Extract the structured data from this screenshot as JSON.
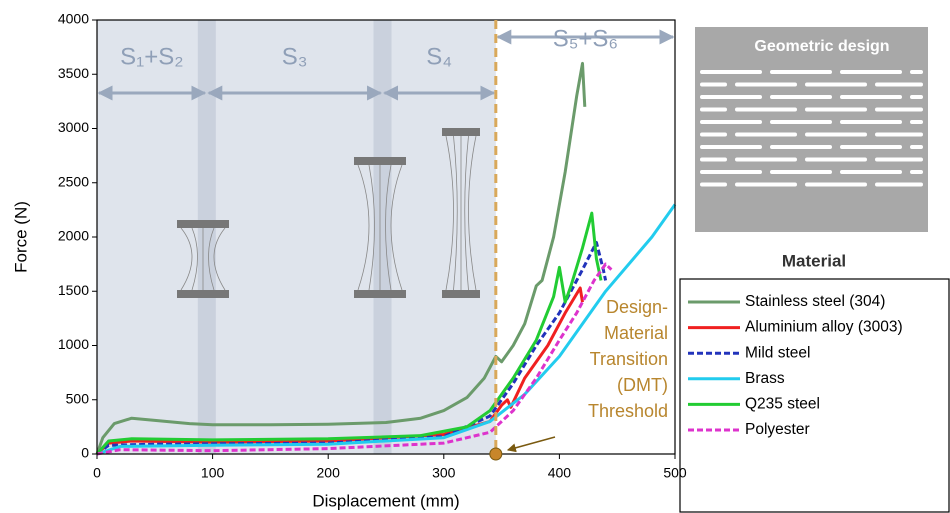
{
  "chart_data": {
    "type": "line",
    "x_label": "Displacement (mm)",
    "y_label": "Force (N)",
    "xlim": [
      0,
      500
    ],
    "xticks": [
      0,
      100,
      200,
      300,
      400,
      500
    ],
    "ylim": [
      0,
      4000
    ],
    "yticks": [
      0,
      500,
      1000,
      1500,
      2000,
      2500,
      3000,
      3500,
      4000
    ],
    "threshold": 345,
    "stages": [
      {
        "label": "S₁+S₂",
        "range": [
          0,
          95
        ]
      },
      {
        "label": "S₃",
        "range": [
          95,
          247
        ]
      },
      {
        "label": "S₄",
        "range": [
          247,
          345
        ]
      },
      {
        "label": "S₅+S₆",
        "range": [
          345,
          500
        ]
      }
    ],
    "annotation_lines": [
      "Design-",
      "Material",
      "Transition",
      "(DMT)",
      "Threshold"
    ],
    "panel_title": "Geometric design",
    "legend_title": "Material",
    "series": [
      {
        "name": "Stainless steel (304)",
        "color": "#6b9b6b",
        "dash": false,
        "x": [
          0,
          5,
          15,
          30,
          50,
          80,
          100,
          150,
          200,
          250,
          280,
          300,
          320,
          335,
          345,
          350,
          360,
          370,
          380,
          385,
          395,
          405,
          415,
          420,
          422
        ],
        "values": [
          0,
          150,
          280,
          330,
          310,
          280,
          270,
          270,
          275,
          290,
          330,
          400,
          520,
          700,
          900,
          850,
          1000,
          1200,
          1550,
          1600,
          2000,
          2600,
          3300,
          3600,
          3200
        ]
      },
      {
        "name": "Aluminium alloy (3003)",
        "color": "#f02020",
        "dash": false,
        "x": [
          0,
          10,
          30,
          100,
          200,
          300,
          340,
          350,
          355,
          358,
          370,
          390,
          405,
          418,
          420
        ],
        "values": [
          0,
          100,
          120,
          110,
          120,
          180,
          300,
          450,
          500,
          430,
          700,
          1000,
          1300,
          1530,
          1400
        ]
      },
      {
        "name": "Mild steel",
        "color": "#2233bb",
        "dash": true,
        "x": [
          0,
          10,
          50,
          200,
          300,
          340,
          360,
          380,
          400,
          420,
          432,
          438,
          440
        ],
        "values": [
          0,
          80,
          90,
          100,
          160,
          350,
          650,
          1000,
          1300,
          1700,
          1950,
          1700,
          1600
        ]
      },
      {
        "name": "Brass",
        "color": "#22ccee",
        "dash": false,
        "x": [
          0,
          20,
          100,
          200,
          300,
          340,
          370,
          400,
          440,
          480,
          500
        ],
        "values": [
          0,
          70,
          80,
          90,
          150,
          300,
          550,
          900,
          1500,
          2000,
          2300
        ]
      },
      {
        "name": "Q235 steel",
        "color": "#22cc33",
        "dash": false,
        "x": [
          0,
          10,
          30,
          100,
          200,
          280,
          320,
          340,
          360,
          380,
          395,
          400,
          405,
          410,
          420,
          428,
          432,
          436
        ],
        "values": [
          0,
          120,
          140,
          130,
          140,
          170,
          250,
          400,
          700,
          1050,
          1450,
          1720,
          1400,
          1550,
          1900,
          2220,
          1800,
          1600
        ]
      },
      {
        "name": "Polyester",
        "color": "#dd33cc",
        "dash": true,
        "x": [
          0,
          20,
          100,
          200,
          300,
          340,
          360,
          380,
          400,
          415,
          430,
          440,
          445
        ],
        "values": [
          0,
          40,
          30,
          50,
          100,
          200,
          400,
          700,
          1050,
          1300,
          1600,
          1750,
          1700
        ]
      }
    ]
  }
}
